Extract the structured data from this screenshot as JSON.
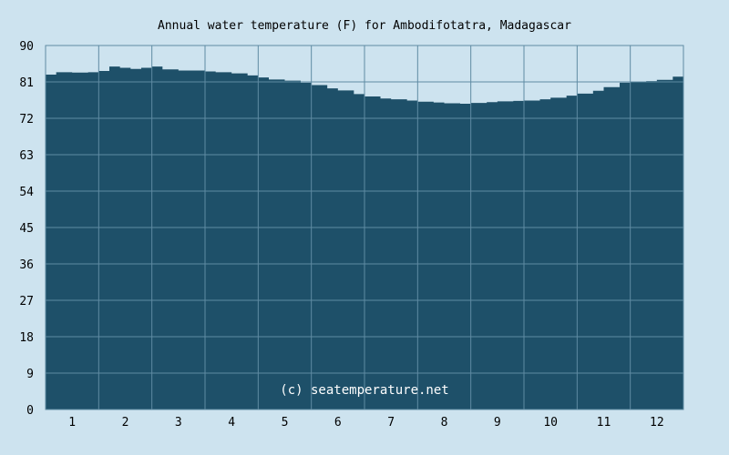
{
  "chart_data": {
    "type": "area",
    "title": "Annual water temperature (F) for Ambodifotatra, Madagascar",
    "xlabel": "",
    "ylabel": "",
    "x_ticks": [
      "1",
      "2",
      "3",
      "4",
      "5",
      "6",
      "7",
      "8",
      "9",
      "10",
      "11",
      "12"
    ],
    "y_ticks": [
      "0",
      "9",
      "18",
      "27",
      "36",
      "45",
      "54",
      "63",
      "72",
      "81",
      "90"
    ],
    "ylim": [
      0,
      90
    ],
    "xlim": [
      0.5,
      12.5
    ],
    "grid": true,
    "legend": "none",
    "series": [
      {
        "x": [
          0.5,
          0.7,
          1.0,
          1.3,
          1.5,
          1.7,
          1.9,
          2.1,
          2.3,
          2.5,
          2.7,
          3.0,
          3.3,
          3.5,
          3.7,
          4.0,
          4.3,
          4.5,
          4.7,
          5.0,
          5.3,
          5.5,
          5.8,
          6.0,
          6.3,
          6.5,
          6.8,
          7.0,
          7.3,
          7.5,
          7.8,
          8.0,
          8.3,
          8.5,
          8.8,
          9.0,
          9.3,
          9.5,
          9.8,
          10.0,
          10.3,
          10.5,
          10.8,
          11.0,
          11.3,
          11.5,
          11.8,
          12.0,
          12.3,
          12.5
        ],
        "values": [
          82.8,
          83.4,
          83.3,
          83.4,
          83.7,
          84.8,
          84.5,
          84.2,
          84.5,
          84.8,
          84.1,
          83.8,
          83.8,
          83.6,
          83.4,
          83.1,
          82.6,
          82.1,
          81.6,
          81.3,
          80.8,
          80.2,
          79.4,
          78.9,
          78.0,
          77.4,
          76.9,
          76.7,
          76.4,
          76.1,
          75.9,
          75.7,
          75.6,
          75.8,
          76.0,
          76.2,
          76.3,
          76.4,
          76.7,
          77.1,
          77.6,
          78.1,
          78.8,
          79.7,
          80.8,
          81.0,
          81.2,
          81.5,
          82.3,
          83.1
        ],
        "color": "#1e5069"
      }
    ],
    "annotation": "(c) seatemperature.net",
    "colors": {
      "background": "#cde3ef",
      "fill": "#1e5069",
      "grid": "#5f8ba3",
      "text": "#000000",
      "credit": "#ffffff"
    }
  }
}
